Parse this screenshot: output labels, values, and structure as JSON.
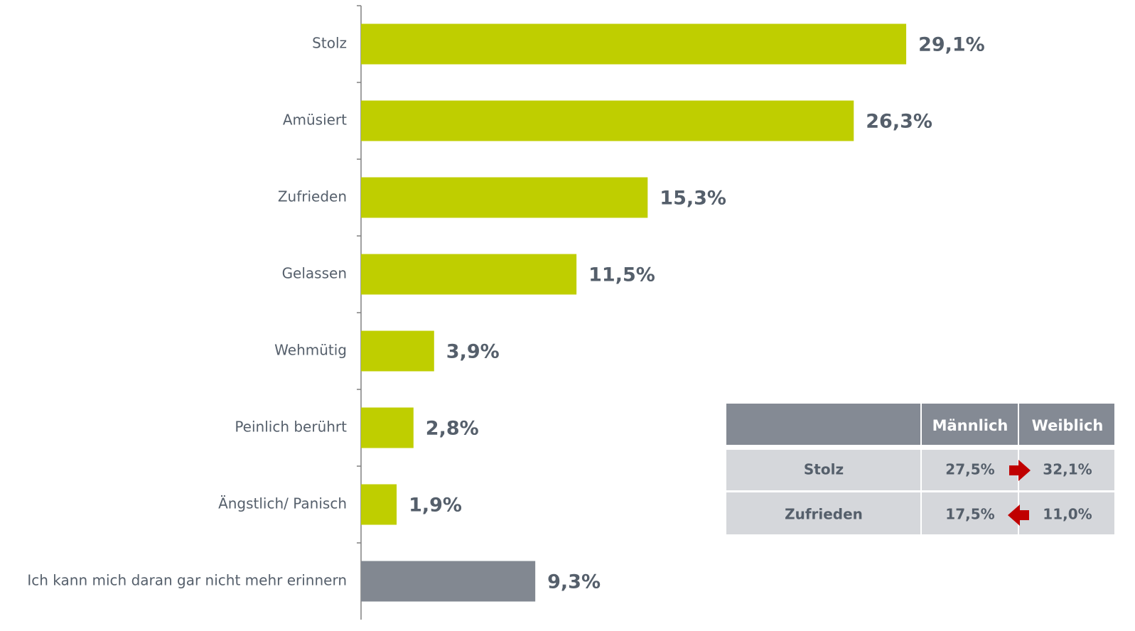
{
  "chart_data": {
    "type": "bar",
    "orientation": "horizontal",
    "categories": [
      "Stolz",
      "Amüsiert",
      "Zufrieden",
      "Gelassen",
      "Wehmütig",
      "Peinlich berührt",
      "Ängstlich/ Panisch",
      "Ich kann mich daran gar nicht mehr erinnern"
    ],
    "values": [
      29.1,
      26.3,
      15.3,
      11.5,
      3.9,
      2.8,
      1.9,
      9.3
    ],
    "value_labels": [
      "29,1%",
      "26,3%",
      "15,3%",
      "11,5%",
      "3,9%",
      "2,8%",
      "1,9%",
      "9,3%"
    ],
    "colors": [
      "#bfce00",
      "#bfce00",
      "#bfce00",
      "#bfce00",
      "#bfce00",
      "#bfce00",
      "#bfce00",
      "#828891"
    ]
  },
  "table": {
    "header": [
      "Männlich",
      "Weiblich"
    ],
    "rows": [
      [
        "Stolz",
        "27,5%",
        "32,1%"
      ],
      [
        "Zufrieden",
        "17,5%",
        "11,0%"
      ]
    ]
  }
}
